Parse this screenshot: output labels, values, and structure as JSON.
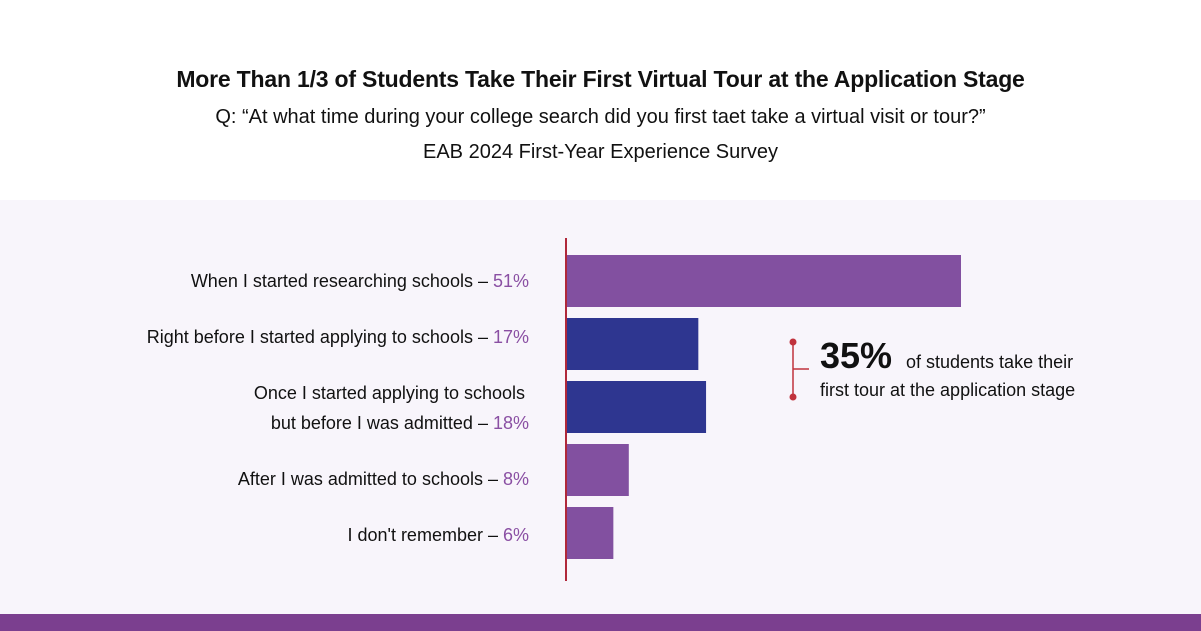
{
  "chart_data": {
    "type": "bar",
    "orientation": "horizontal",
    "title": "More Than 1/3 of Students Take Their First Virtual Tour at the Application Stage",
    "subtitle": "Q: “At what time during your college search did you first taet take a virtual visit or tour?”",
    "source": "EAB 2024 First-Year Experience Survey",
    "categories": [
      [
        "When I started researching schools – "
      ],
      [
        "Right before I started applying to schools – "
      ],
      [
        "Once I started applying to schools",
        "but before I was admitted – "
      ],
      [
        "After I was admitted to schools – "
      ],
      [
        "I don't remember – "
      ]
    ],
    "value_labels": [
      "51%",
      "17%",
      "18%",
      "8%",
      "6%"
    ],
    "values": [
      51,
      17,
      18,
      8,
      6
    ],
    "bar_colors": [
      "#8250a0",
      "#2e3690",
      "#2e3690",
      "#8250a0",
      "#8250a0"
    ],
    "xlim": [
      0,
      51
    ],
    "grid": false,
    "legend": "none",
    "annotation": {
      "value": "35%",
      "text_line1": "of students take their",
      "text_line2": "first tour at the application stage",
      "bracket_color": "#c0323c"
    }
  },
  "colors": {
    "axis": "#b0283a",
    "percent_text": "#8a4fa3",
    "panel_bg": "#f8f5fb",
    "footer": "#7b3f8f"
  }
}
